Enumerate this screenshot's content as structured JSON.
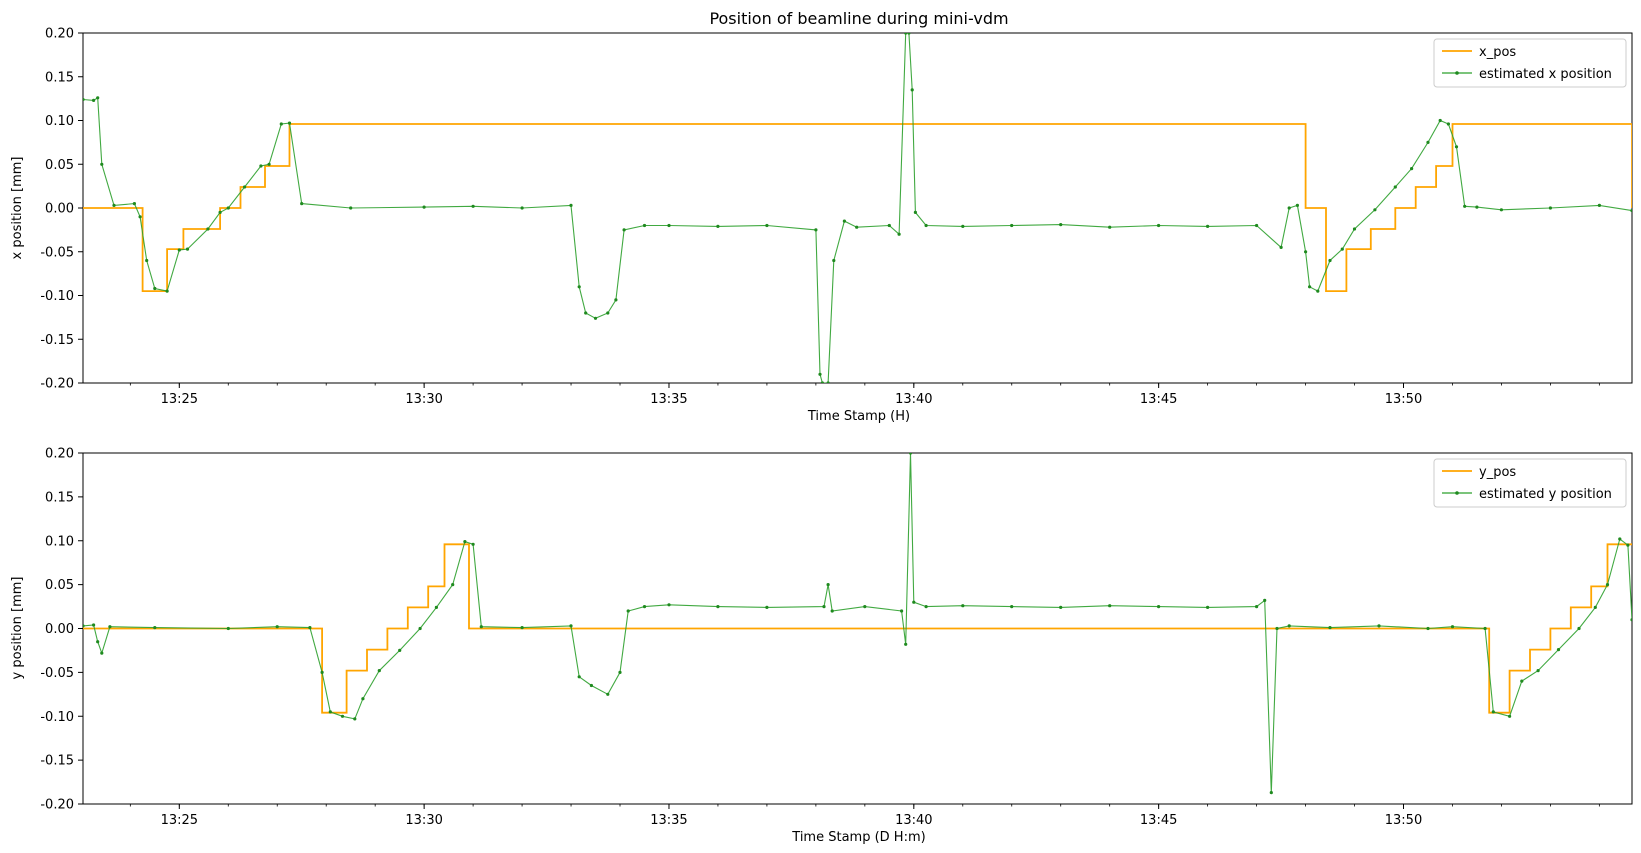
{
  "figure": {
    "title": "Position of beamline during mini-vdm"
  },
  "colors": {
    "set_line": "#ffa500",
    "estimate_line": "#2ca02c",
    "estimate_marker": "#1f8a1f"
  },
  "chart_data": [
    {
      "type": "line",
      "title": "Position of beamline during mini-vdm",
      "xlabel": "Time Stamp (H)",
      "ylabel": "x position [mm]",
      "xlim": [
        "13:23:02",
        "13:54:40"
      ],
      "ylim": [
        -0.2,
        0.2
      ],
      "yticks": [
        "-0.20",
        "-0.15",
        "-0.10",
        "-0.05",
        "0.00",
        "0.05",
        "0.10",
        "0.15",
        "0.20"
      ],
      "xticks": [
        "13:25",
        "13:30",
        "13:35",
        "13:40",
        "13:45",
        "13:50"
      ],
      "legend_position": "top-right",
      "grid": false,
      "series": [
        {
          "name": "x_pos",
          "style": "step",
          "x": [
            "13:23:02",
            "13:24:15",
            "13:24:45",
            "13:25:05",
            "13:25:50",
            "13:26:15",
            "13:26:45",
            "13:27:15",
            "13:48:00",
            "13:48:25",
            "13:48:50",
            "13:49:20",
            "13:49:50",
            "13:50:15",
            "13:50:40",
            "13:51:00",
            "13:54:40"
          ],
          "values": [
            0.0,
            -0.095,
            -0.047,
            -0.024,
            0.0,
            0.024,
            0.048,
            0.096,
            0.0,
            -0.095,
            -0.047,
            -0.024,
            0.0,
            0.024,
            0.048,
            0.096,
            0.0
          ]
        },
        {
          "name": "estimated x position",
          "style": "line-marker",
          "x": [
            "13:23:02",
            "13:23:15",
            "13:23:20",
            "13:23:25",
            "13:23:40",
            "13:24:05",
            "13:24:12",
            "13:24:20",
            "13:24:30",
            "13:24:45",
            "13:25:00",
            "13:25:10",
            "13:25:35",
            "13:25:50",
            "13:26:00",
            "13:26:20",
            "13:26:40",
            "13:26:50",
            "13:27:05",
            "13:27:15",
            "13:27:30",
            "13:28:30",
            "13:30:00",
            "13:31:00",
            "13:32:00",
            "13:33:00",
            "13:33:10",
            "13:33:18",
            "13:33:30",
            "13:33:45",
            "13:33:55",
            "13:34:05",
            "13:34:30",
            "13:35:00",
            "13:36:00",
            "13:37:00",
            "13:38:00",
            "13:38:05",
            "13:38:08",
            "13:38:15",
            "13:38:22",
            "13:38:35",
            "13:38:50",
            "13:39:30",
            "13:39:42",
            "13:39:50",
            "13:39:54",
            "13:39:58",
            "13:40:02",
            "13:40:15",
            "13:41:00",
            "13:42:00",
            "13:43:00",
            "13:44:00",
            "13:45:00",
            "13:46:00",
            "13:47:00",
            "13:47:30",
            "13:47:40",
            "13:47:50",
            "13:48:00",
            "13:48:05",
            "13:48:15",
            "13:48:30",
            "13:48:45",
            "13:49:00",
            "13:49:25",
            "13:49:50",
            "13:50:10",
            "13:50:30",
            "13:50:45",
            "13:50:55",
            "13:51:05",
            "13:51:15",
            "13:51:30",
            "13:52:00",
            "13:53:00",
            "13:54:00",
            "13:54:40"
          ],
          "values": [
            0.124,
            0.123,
            0.126,
            0.05,
            0.003,
            0.005,
            -0.01,
            -0.06,
            -0.092,
            -0.095,
            -0.048,
            -0.047,
            -0.024,
            -0.005,
            0.0,
            0.024,
            0.048,
            0.05,
            0.096,
            0.097,
            0.005,
            0.0,
            0.001,
            0.002,
            0.0,
            0.003,
            -0.09,
            -0.12,
            -0.126,
            -0.12,
            -0.105,
            -0.025,
            -0.02,
            -0.02,
            -0.021,
            -0.02,
            -0.025,
            -0.19,
            -0.2,
            -0.2,
            -0.06,
            -0.015,
            -0.022,
            -0.02,
            -0.03,
            0.2,
            0.2,
            0.135,
            -0.005,
            -0.02,
            -0.021,
            -0.02,
            -0.019,
            -0.022,
            -0.02,
            -0.021,
            -0.02,
            -0.045,
            0.0,
            0.003,
            -0.05,
            -0.09,
            -0.095,
            -0.06,
            -0.047,
            -0.024,
            -0.002,
            0.024,
            0.045,
            0.075,
            0.1,
            0.096,
            0.07,
            0.002,
            0.001,
            -0.002,
            0.0,
            0.003,
            -0.003
          ]
        }
      ]
    },
    {
      "type": "line",
      "title": "",
      "xlabel": "Time Stamp (D H:m)",
      "ylabel": "y position [mm]",
      "xlim": [
        "13:23:02",
        "13:54:40"
      ],
      "ylim": [
        -0.2,
        0.2
      ],
      "yticks": [
        "-0.20",
        "-0.15",
        "-0.10",
        "-0.05",
        "0.00",
        "0.05",
        "0.10",
        "0.15",
        "0.20"
      ],
      "xticks": [
        "13:25",
        "13:30",
        "13:35",
        "13:40",
        "13:45",
        "13:50"
      ],
      "legend_position": "top-right",
      "grid": false,
      "series": [
        {
          "name": "y_pos",
          "style": "step",
          "x": [
            "13:23:02",
            "13:27:55",
            "13:28:25",
            "13:28:50",
            "13:29:15",
            "13:29:40",
            "13:30:05",
            "13:30:25",
            "13:30:55",
            "13:51:45",
            "13:52:10",
            "13:52:35",
            "13:53:00",
            "13:53:25",
            "13:53:50",
            "13:54:10",
            "13:54:40"
          ],
          "values": [
            0.0,
            -0.096,
            -0.048,
            -0.024,
            0.0,
            0.024,
            0.048,
            0.096,
            0.0,
            -0.096,
            -0.048,
            -0.024,
            0.0,
            0.024,
            0.048,
            0.096,
            0.096
          ]
        },
        {
          "name": "estimated y position",
          "style": "line-marker",
          "x": [
            "13:23:02",
            "13:23:15",
            "13:23:20",
            "13:23:25",
            "13:23:35",
            "13:24:30",
            "13:26:00",
            "13:27:00",
            "13:27:40",
            "13:27:55",
            "13:28:05",
            "13:28:20",
            "13:28:35",
            "13:28:45",
            "13:29:05",
            "13:29:30",
            "13:29:55",
            "13:30:15",
            "13:30:35",
            "13:30:50",
            "13:31:00",
            "13:31:10",
            "13:32:00",
            "13:33:00",
            "13:33:10",
            "13:33:25",
            "13:33:45",
            "13:34:00",
            "13:34:10",
            "13:34:30",
            "13:35:00",
            "13:36:00",
            "13:37:00",
            "13:38:10",
            "13:38:15",
            "13:38:20",
            "13:39:00",
            "13:39:45",
            "13:39:50",
            "13:39:56",
            "13:40:00",
            "13:40:15",
            "13:41:00",
            "13:42:00",
            "13:43:00",
            "13:44:00",
            "13:45:00",
            "13:46:00",
            "13:47:00",
            "13:47:10",
            "13:47:18",
            "13:47:25",
            "13:47:40",
            "13:48:30",
            "13:49:30",
            "13:50:30",
            "13:51:00",
            "13:51:40",
            "13:51:50",
            "13:52:10",
            "13:52:25",
            "13:52:45",
            "13:53:10",
            "13:53:35",
            "13:53:55",
            "13:54:10",
            "13:54:25",
            "13:54:35",
            "13:54:40"
          ],
          "values": [
            0.003,
            0.004,
            -0.015,
            -0.028,
            0.002,
            0.001,
            0.0,
            0.002,
            0.001,
            -0.05,
            -0.095,
            -0.1,
            -0.103,
            -0.08,
            -0.048,
            -0.025,
            0.0,
            0.024,
            0.05,
            0.099,
            0.096,
            0.002,
            0.001,
            0.003,
            -0.055,
            -0.065,
            -0.075,
            -0.05,
            0.02,
            0.025,
            0.027,
            0.025,
            0.024,
            0.025,
            0.05,
            0.02,
            0.025,
            0.02,
            -0.018,
            0.2,
            0.03,
            0.025,
            0.026,
            0.025,
            0.024,
            0.026,
            0.025,
            0.024,
            0.025,
            0.032,
            -0.187,
            0.0,
            0.003,
            0.001,
            0.003,
            0.0,
            0.002,
            0.0,
            -0.095,
            -0.1,
            -0.06,
            -0.048,
            -0.024,
            0.0,
            0.024,
            0.05,
            0.102,
            0.095,
            0.01
          ]
        }
      ]
    }
  ]
}
